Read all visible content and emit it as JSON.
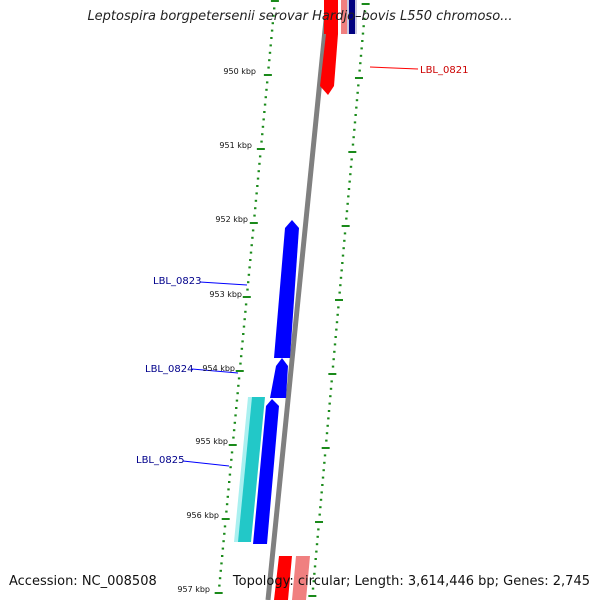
{
  "title": "Leptospira borgpetersenii serovar Hardjo–bovis L550 chromoso...",
  "footer": {
    "accession": "Accession: NC_008508",
    "summary": "Topology: circular; Length: 3,614,446 bp; Genes: 2,745"
  },
  "kbp_ticks": [
    "950 kbp",
    "951 kbp",
    "952 kbp",
    "953 kbp",
    "954 kbp",
    "955 kbp",
    "956 kbp",
    "957 kbp"
  ],
  "genes": [
    {
      "label": "LBL_0821",
      "strand": "reverse",
      "color": "#ff0000"
    },
    {
      "label": "LBL_0823",
      "strand": "forward",
      "color": "#0000ff"
    },
    {
      "label": "LBL_0824",
      "strand": "forward",
      "color": "#0000ff"
    },
    {
      "label": "LBL_0825",
      "strand": "forward",
      "color": "#0000ff"
    }
  ],
  "colors": {
    "backbone": "#808080",
    "tick": "#1a8a1a",
    "forward_cds": "#0000ff",
    "reverse_cds": "#ff0000",
    "rna": "#22c8c8",
    "label_forward": "#00008b",
    "label_reverse": "#cc0000"
  }
}
